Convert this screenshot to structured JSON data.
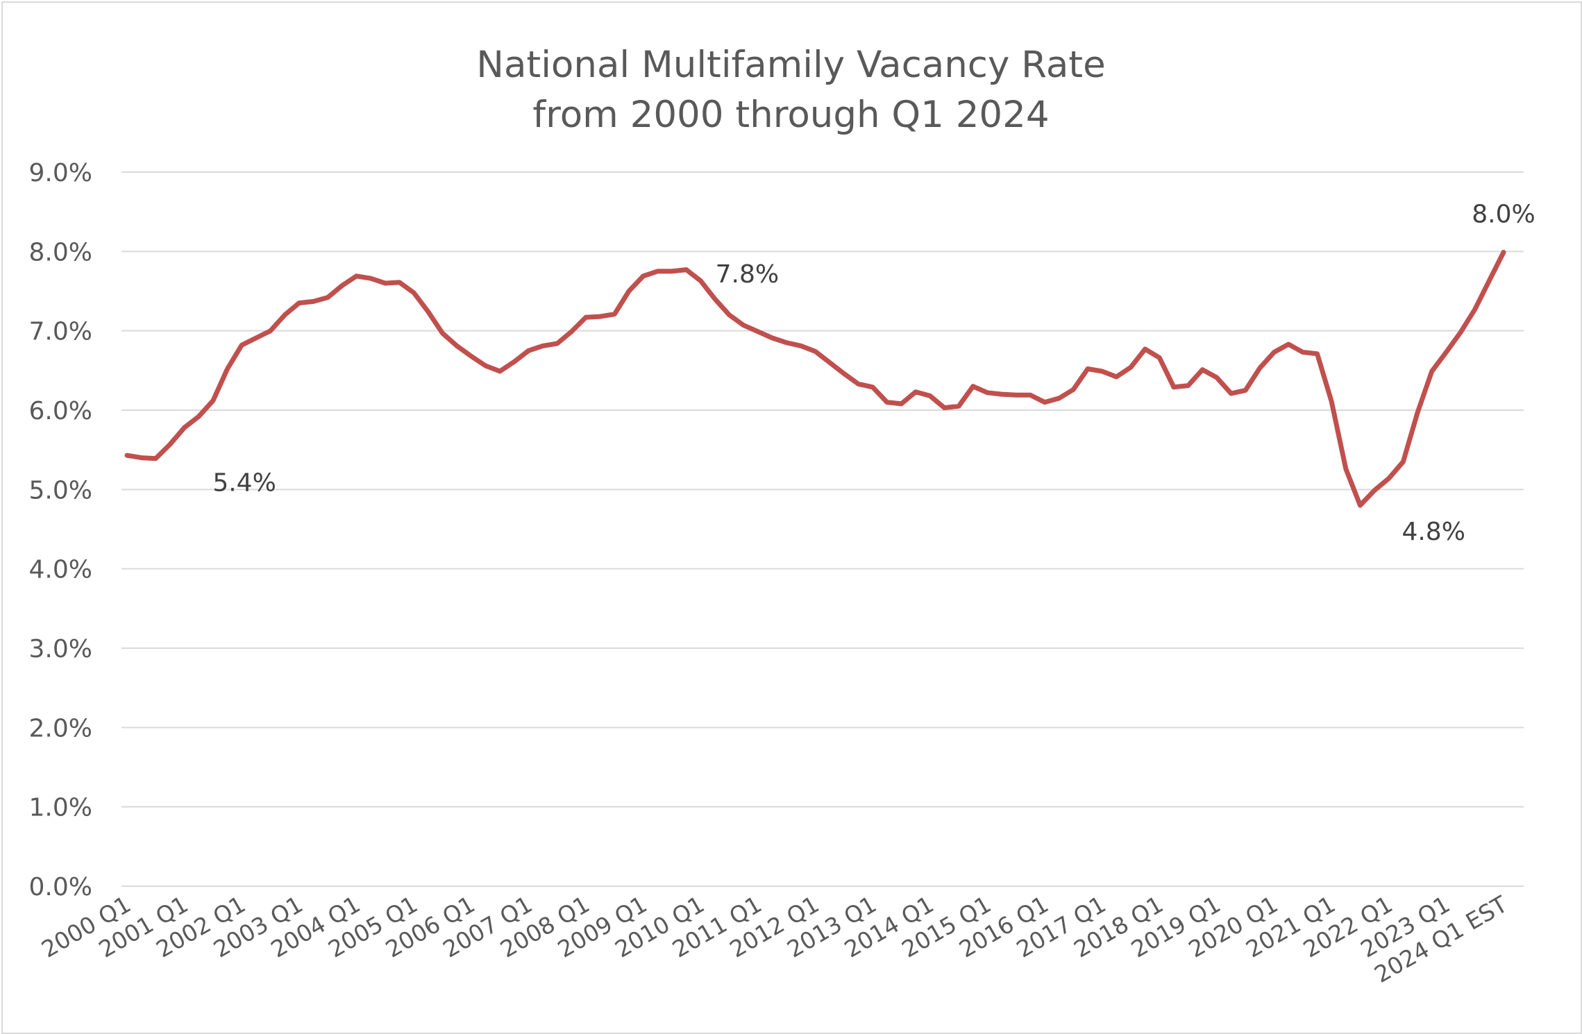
{
  "chart_data": {
    "type": "line",
    "title": "National Multifamily Vacancy Rate",
    "subtitle": "from 2000 through Q1 2024",
    "xlabel": "",
    "ylabel": "",
    "ylim": [
      0,
      9
    ],
    "y_ticks": [
      "0.0%",
      "1.0%",
      "2.0%",
      "3.0%",
      "4.0%",
      "5.0%",
      "6.0%",
      "7.0%",
      "8.0%",
      "9.0%"
    ],
    "x_tick_labels": [
      "2000 Q1",
      "2001 Q1",
      "2002 Q1",
      "2003 Q1",
      "2004 Q1",
      "2005 Q1",
      "2006 Q1",
      "2007 Q1",
      "2008 Q1",
      "2009 Q1",
      "2010 Q1",
      "2011 Q1",
      "2012 Q1",
      "2013 Q1",
      "2014 Q1",
      "2015 Q1",
      "2016 Q1",
      "2017 Q1",
      "2018 Q1",
      "2019 Q1",
      "2020 Q1",
      "2021 Q1",
      "2022 Q1",
      "2023 Q1",
      "2024 Q1 EST"
    ],
    "grid": true,
    "legend": "none",
    "series_color": "#C0504D",
    "series": [
      {
        "values": [
          5.43,
          5.4,
          5.39,
          5.57,
          5.78,
          5.92,
          6.12,
          6.52,
          6.82,
          6.91,
          7.0,
          7.2,
          7.35,
          7.37,
          7.42,
          7.57,
          7.69,
          7.66,
          7.6,
          7.61,
          7.48,
          7.24,
          6.97,
          6.81,
          6.68,
          6.56,
          6.49,
          6.61,
          6.75,
          6.81,
          6.84,
          6.99,
          7.17,
          7.18,
          7.21,
          7.5,
          7.69,
          7.75,
          7.75,
          7.77,
          7.63,
          7.4,
          7.2,
          7.07,
          6.99,
          6.91,
          6.85,
          6.81,
          6.74,
          6.6,
          6.46,
          6.33,
          6.29,
          6.1,
          6.08,
          6.23,
          6.18,
          6.03,
          6.05,
          6.3,
          6.22,
          6.2,
          6.19,
          6.19,
          6.1,
          6.15,
          6.26,
          6.52,
          6.49,
          6.42,
          6.54,
          6.77,
          6.66,
          6.29,
          6.31,
          6.51,
          6.41,
          6.21,
          6.25,
          6.53,
          6.73,
          6.83,
          6.73,
          6.71,
          6.11,
          5.26,
          4.8,
          4.99,
          5.14,
          5.35,
          5.97,
          6.49,
          6.73,
          6.98,
          7.27,
          7.63,
          7.99
        ]
      }
    ],
    "annotations": [
      {
        "label": "5.4%",
        "index": 2,
        "value": 5.4
      },
      {
        "label": "7.8%",
        "index": 39,
        "value": 7.8
      },
      {
        "label": "4.8%",
        "index": 86,
        "value": 4.8
      },
      {
        "label": "8.0%",
        "index": 96,
        "value": 8.0
      }
    ]
  }
}
